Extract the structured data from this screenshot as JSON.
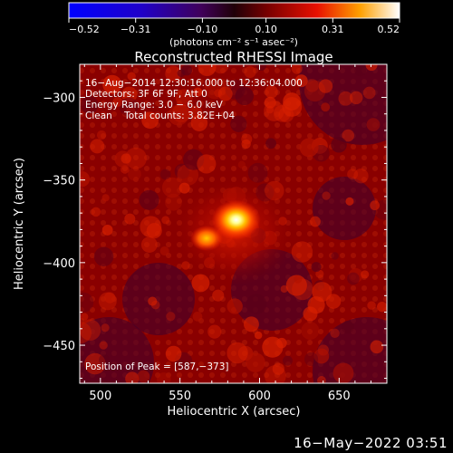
{
  "chart_data": {
    "type": "heatmap",
    "title": "Reconstructed RHESSI Image",
    "xlabel": "Heliocentric X (arcsec)",
    "ylabel": "Heliocentric Y (arcsec)",
    "xlim": [
      487,
      680
    ],
    "ylim": [
      -473,
      -280
    ],
    "x_ticks": [
      500,
      550,
      600,
      650
    ],
    "y_ticks": [
      -300,
      -350,
      -400,
      -450
    ],
    "x_tick_labels": [
      "500",
      "550",
      "600",
      "650"
    ],
    "y_tick_labels": [
      "−300",
      "−350",
      "−400",
      "−450"
    ],
    "colorbar": {
      "min": -0.52,
      "max": 0.52,
      "ticks": [
        -0.52,
        -0.31,
        -0.1,
        0.1,
        0.31,
        0.52
      ],
      "tick_labels": [
        "−0.52",
        "−0.31",
        "−0.10",
        "0.10",
        "0.31",
        "0.52"
      ],
      "unit_label": "(photons cm⁻² s⁻¹ asec⁻²)"
    },
    "annotations": [
      "16−Aug−2014 12:30:16.000 to 12:36:04.000",
      "Detectors: 3F 6F 9F, Att 0",
      "Energy Range: 3.0 − 6.0 keV",
      "Clean    Total counts: 3.82E+04"
    ],
    "peak_label": "Position of Peak = [587,−373]",
    "peak": {
      "x": 587,
      "y": -373,
      "value": 0.52
    }
  },
  "footer": {
    "timestamp": "16−May−2022 03:51"
  }
}
